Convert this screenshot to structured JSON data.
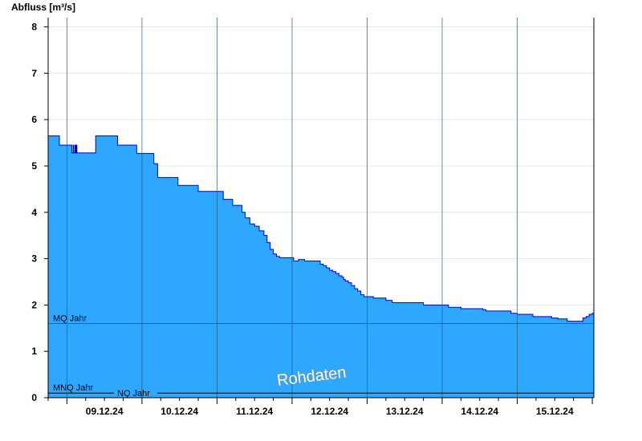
{
  "chart_data": {
    "type": "area",
    "ylabel": "Abfluss [m³/s]",
    "xlabel": "",
    "title": "",
    "ylim": [
      0,
      8.2
    ],
    "xlim": [
      "08.12.24 18:00",
      "15.12.24 24:00"
    ],
    "y_ticks": [
      "0",
      "1",
      "2",
      "3",
      "4",
      "5",
      "6",
      "7",
      "8"
    ],
    "x_ticks": [
      "09.12.24",
      "10.12.24",
      "11.12.24",
      "12.12.24",
      "13.12.24",
      "14.12.24",
      "15.12.24"
    ],
    "grid": "horizontal",
    "fill_color": "#2EA8FF",
    "line_color": "#0000CC",
    "series": [
      {
        "name": "",
        "x_hours": [
          0,
          3.0,
          3.6,
          7.4,
          7.6,
          8.0,
          8.2,
          8.6,
          8.8,
          9.0,
          9.2,
          14.5,
          15.2,
          21.5,
          22.2,
          27.7,
          28.3,
          33.5,
          33.8,
          35.0,
          40.5,
          41.5,
          47.8,
          48.0,
          54.0,
          56.0,
          58.0,
          59.0,
          60.5,
          62.0,
          62.5,
          63.0,
          63.5,
          64.5,
          65.5,
          66.0,
          67.0,
          67.5,
          68.0,
          69.0,
          70.0,
          71.0,
          72.0,
          73.0,
          74.0,
          77.0,
          78.5,
          79.0,
          80.0,
          82.0,
          85.0,
          87.0,
          88.0,
          89.0,
          90.0,
          91.0,
          92.0,
          93.0,
          94.0,
          94.5,
          95.0,
          96.0,
          97.0,
          98.0,
          99.0,
          100.0,
          101.0,
          104.0,
          108.0,
          110.0,
          112.0,
          114.0,
          120.0,
          128.0,
          132.0,
          139.0,
          140.0,
          148.0,
          150.0,
          155.0,
          157.0,
          161.0,
          163.0,
          166.0,
          168.0,
          170.0,
          171.0,
          172.0,
          173.0,
          174.0,
          174.5
        ],
        "values": [
          5.65,
          5.65,
          5.45,
          5.45,
          5.28,
          5.45,
          5.28,
          5.45,
          5.28,
          5.45,
          5.28,
          5.28,
          5.65,
          5.65,
          5.45,
          5.45,
          5.27,
          5.27,
          5.05,
          4.75,
          4.75,
          4.58,
          4.58,
          4.45,
          4.45,
          4.28,
          4.28,
          4.15,
          4.15,
          4.0,
          4.0,
          3.88,
          3.88,
          3.75,
          3.75,
          3.7,
          3.7,
          3.6,
          3.6,
          3.5,
          3.35,
          3.2,
          3.1,
          3.05,
          3.02,
          3.02,
          2.95,
          2.95,
          2.98,
          2.95,
          2.95,
          2.88,
          2.85,
          2.8,
          2.75,
          2.72,
          2.68,
          2.63,
          2.6,
          2.55,
          2.52,
          2.48,
          2.42,
          2.35,
          2.3,
          2.22,
          2.18,
          2.15,
          2.1,
          2.05,
          2.05,
          2.05,
          2.0,
          1.95,
          1.92,
          1.9,
          1.87,
          1.82,
          1.8,
          1.75,
          1.75,
          1.72,
          1.7,
          1.65,
          1.65,
          1.65,
          1.72,
          1.75,
          1.8,
          1.82,
          1.88
        ]
      }
    ],
    "reference_lines": [
      {
        "label": "MQ Jahr",
        "value": 1.6,
        "color": "#1A7A1A"
      },
      {
        "label": "MNQ Jahr",
        "value": 0.1,
        "color": "#000000"
      },
      {
        "label": "NQ Jahr",
        "value": 0.1,
        "color": "#000000"
      }
    ],
    "watermark": "Rohdaten"
  }
}
